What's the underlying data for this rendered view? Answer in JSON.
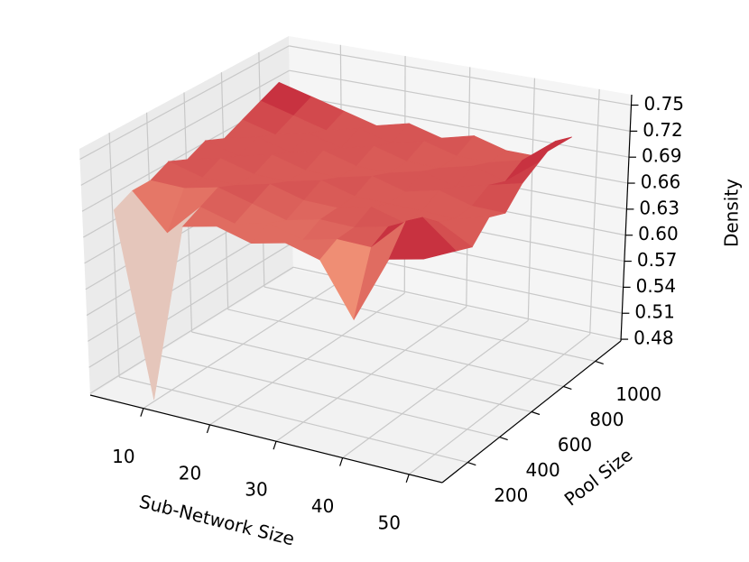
{
  "chart_data": {
    "type": "surface",
    "xlabel": "Sub-Network Size",
    "ylabel": "Pool Size",
    "zlabel": "Density",
    "x": [
      5,
      10,
      15,
      20,
      25,
      30,
      35,
      40,
      45,
      50
    ],
    "y": [
      100,
      200,
      300,
      400,
      500,
      600,
      700,
      800,
      900,
      1000
    ],
    "z": [
      [
        0.69,
        0.48,
        0.69,
        0.7,
        0.69,
        0.7,
        0.69,
        0.63,
        0.71,
        0.72
      ],
      [
        0.7,
        0.66,
        0.7,
        0.69,
        0.7,
        0.69,
        0.7,
        0.7,
        0.74,
        0.71
      ],
      [
        0.7,
        0.7,
        0.71,
        0.7,
        0.69,
        0.7,
        0.7,
        0.71,
        0.73,
        0.7
      ],
      [
        0.71,
        0.7,
        0.7,
        0.71,
        0.7,
        0.7,
        0.71,
        0.7,
        0.71,
        0.69
      ],
      [
        0.7,
        0.71,
        0.7,
        0.7,
        0.71,
        0.7,
        0.7,
        0.7,
        0.7,
        0.71
      ],
      [
        0.71,
        0.7,
        0.71,
        0.7,
        0.7,
        0.71,
        0.7,
        0.71,
        0.7,
        0.7
      ],
      [
        0.7,
        0.71,
        0.7,
        0.71,
        0.7,
        0.7,
        0.71,
        0.7,
        0.71,
        0.72
      ],
      [
        0.71,
        0.7,
        0.71,
        0.7,
        0.71,
        0.7,
        0.7,
        0.71,
        0.7,
        0.73
      ],
      [
        0.72,
        0.71,
        0.7,
        0.71,
        0.7,
        0.71,
        0.7,
        0.7,
        0.71,
        0.74
      ],
      [
        0.73,
        0.72,
        0.71,
        0.7,
        0.71,
        0.7,
        0.71,
        0.7,
        0.7,
        0.73
      ]
    ],
    "colormap": "coolwarm",
    "xlim": [
      2,
      55
    ],
    "xticks": [
      10,
      20,
      30,
      40,
      50
    ],
    "ylim": [
      40,
      1160
    ],
    "yticks": [
      200,
      400,
      600,
      800,
      1000
    ],
    "zlim": [
      0.478,
      0.762
    ],
    "zticks": [
      0.48,
      0.51,
      0.54,
      0.57,
      {
        "value": 0.6,
        "label": "0.60"
      },
      0.63,
      0.66,
      0.69,
      0.72,
      0.75
    ],
    "grid": true
  }
}
